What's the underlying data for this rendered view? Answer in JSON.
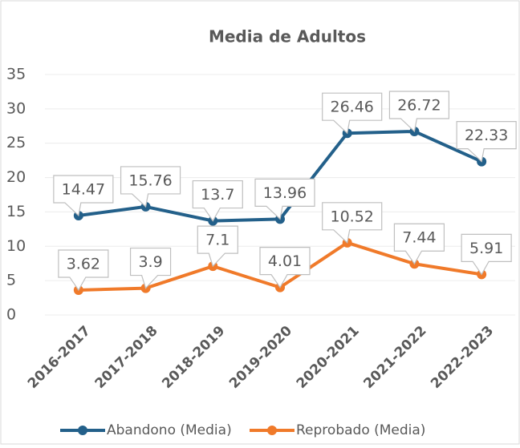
{
  "chart_data": {
    "type": "line",
    "title": "Media de Adultos",
    "categories": [
      "2016-2017",
      "2017-2018",
      "2018-2019",
      "2019-2020",
      "2020-2021",
      "2021-2022",
      "2022-2023"
    ],
    "series": [
      {
        "name": "Abandono (Media)",
        "color": "#23608a",
        "values": [
          14.47,
          15.76,
          13.7,
          13.96,
          26.46,
          26.72,
          22.33
        ]
      },
      {
        "name": "Reprobado (Media)",
        "color": "#f07a2a",
        "values": [
          3.62,
          3.9,
          7.1,
          4.01,
          10.52,
          7.44,
          5.91
        ]
      }
    ],
    "ylim": [
      0,
      35
    ],
    "yticks": [
      0,
      5,
      10,
      15,
      20,
      25,
      30,
      35
    ],
    "grid": true,
    "legend": "bottom"
  }
}
